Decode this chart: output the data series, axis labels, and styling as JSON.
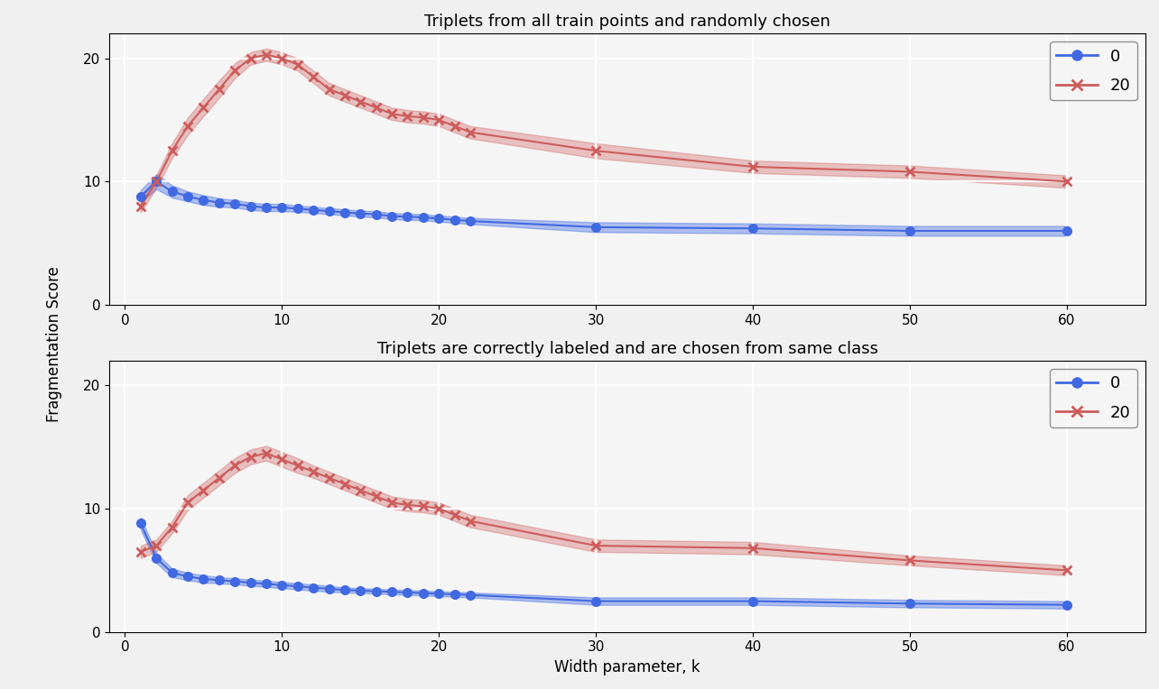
{
  "title1": "Triplets from all train points and randomly chosen",
  "title2": "Triplets are correctly labeled and are chosen from same class",
  "xlabel": "Width parameter, k",
  "ylabel": "Fragmentation Score",
  "legend_labels": [
    "0",
    "20"
  ],
  "blue_color": "#4169E1",
  "red_color": "#CD5C5C",
  "plot1": {
    "blue_x": [
      1,
      2,
      3,
      4,
      5,
      6,
      7,
      8,
      9,
      10,
      11,
      12,
      13,
      14,
      15,
      16,
      17,
      18,
      19,
      20,
      21,
      22,
      30,
      40,
      50,
      60
    ],
    "blue_y": [
      8.8,
      10.0,
      9.2,
      8.8,
      8.5,
      8.3,
      8.2,
      8.0,
      7.9,
      7.9,
      7.8,
      7.7,
      7.6,
      7.5,
      7.4,
      7.35,
      7.2,
      7.15,
      7.1,
      7.0,
      6.9,
      6.8,
      6.3,
      6.2,
      6.0,
      6.0
    ],
    "blue_err": [
      0.5,
      0.6,
      0.5,
      0.4,
      0.4,
      0.35,
      0.3,
      0.3,
      0.3,
      0.3,
      0.25,
      0.25,
      0.25,
      0.25,
      0.25,
      0.25,
      0.25,
      0.25,
      0.25,
      0.25,
      0.25,
      0.25,
      0.4,
      0.4,
      0.4,
      0.4
    ],
    "red_x": [
      1,
      2,
      3,
      4,
      5,
      6,
      7,
      8,
      9,
      10,
      11,
      12,
      13,
      14,
      15,
      16,
      17,
      18,
      19,
      20,
      21,
      22,
      30,
      40,
      50,
      60
    ],
    "red_y": [
      8.0,
      10.0,
      12.5,
      14.5,
      16.0,
      17.5,
      19.0,
      20.0,
      20.3,
      20.0,
      19.5,
      18.5,
      17.5,
      17.0,
      16.5,
      16.0,
      15.5,
      15.3,
      15.2,
      15.0,
      14.5,
      14.0,
      12.5,
      11.2,
      10.8,
      10.0
    ],
    "red_err": [
      0.5,
      0.5,
      0.6,
      0.7,
      0.7,
      0.7,
      0.6,
      0.5,
      0.5,
      0.5,
      0.5,
      0.5,
      0.5,
      0.5,
      0.5,
      0.5,
      0.5,
      0.5,
      0.5,
      0.5,
      0.5,
      0.5,
      0.6,
      0.5,
      0.5,
      0.5
    ]
  },
  "plot2": {
    "blue_x": [
      1,
      2,
      3,
      4,
      5,
      6,
      7,
      8,
      9,
      10,
      11,
      12,
      13,
      14,
      15,
      16,
      17,
      18,
      19,
      20,
      21,
      22,
      30,
      40,
      50,
      60
    ],
    "blue_y": [
      8.8,
      6.0,
      4.8,
      4.5,
      4.3,
      4.2,
      4.1,
      4.0,
      3.9,
      3.8,
      3.7,
      3.6,
      3.5,
      3.4,
      3.35,
      3.3,
      3.25,
      3.2,
      3.15,
      3.1,
      3.05,
      3.0,
      2.5,
      2.5,
      2.3,
      2.2
    ],
    "blue_err": [
      0.5,
      0.4,
      0.35,
      0.3,
      0.3,
      0.25,
      0.25,
      0.25,
      0.25,
      0.25,
      0.25,
      0.25,
      0.25,
      0.2,
      0.2,
      0.2,
      0.2,
      0.2,
      0.2,
      0.2,
      0.2,
      0.2,
      0.3,
      0.3,
      0.3,
      0.3
    ],
    "red_x": [
      1,
      2,
      3,
      4,
      5,
      6,
      7,
      8,
      9,
      10,
      11,
      12,
      13,
      14,
      15,
      16,
      17,
      18,
      19,
      20,
      21,
      22,
      30,
      40,
      50,
      60
    ],
    "red_y": [
      6.5,
      7.0,
      8.5,
      10.5,
      11.5,
      12.5,
      13.5,
      14.2,
      14.5,
      14.0,
      13.5,
      13.0,
      12.5,
      12.0,
      11.5,
      11.0,
      10.5,
      10.3,
      10.2,
      10.0,
      9.5,
      9.0,
      7.0,
      6.8,
      5.8,
      5.0
    ],
    "red_err": [
      0.5,
      0.5,
      0.5,
      0.6,
      0.6,
      0.6,
      0.6,
      0.6,
      0.6,
      0.6,
      0.6,
      0.5,
      0.5,
      0.5,
      0.5,
      0.5,
      0.5,
      0.5,
      0.5,
      0.5,
      0.5,
      0.5,
      0.5,
      0.5,
      0.4,
      0.4
    ]
  },
  "ylim1": [
    0,
    22
  ],
  "ylim2": [
    0,
    22
  ],
  "yticks": [
    0,
    10,
    20
  ],
  "xticks": [
    0,
    10,
    20,
    30,
    40,
    50,
    60
  ],
  "bg_color": "#f5f5f5",
  "grid_color": "#ffffff"
}
